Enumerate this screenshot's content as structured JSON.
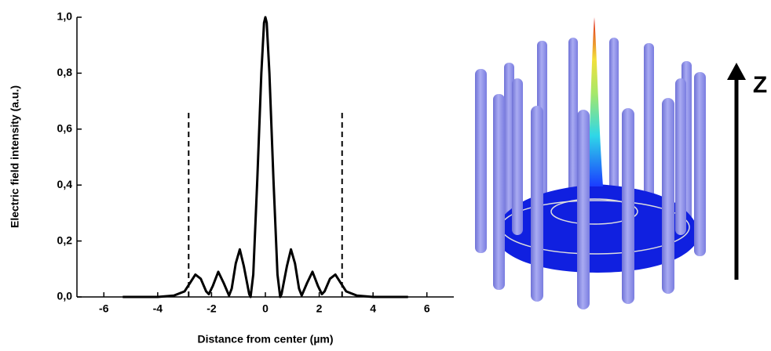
{
  "chart_data": {
    "type": "line",
    "x_label": "Distance from center (µm)",
    "y_label": "Electric field intensity (a.u.)",
    "x": [
      -5.3,
      -4.0,
      -3.4,
      -3.0,
      -2.8,
      -2.6,
      -2.4,
      -2.2,
      -2.1,
      -1.95,
      -1.75,
      -1.55,
      -1.35,
      -1.25,
      -1.1,
      -0.95,
      -0.8,
      -0.6,
      -0.55,
      -0.45,
      -0.3,
      -0.15,
      -0.05,
      0,
      0.05,
      0.15,
      0.3,
      0.45,
      0.55,
      0.6,
      0.8,
      0.95,
      1.1,
      1.25,
      1.35,
      1.55,
      1.75,
      1.95,
      2.1,
      2.2,
      2.4,
      2.6,
      2.8,
      3.0,
      3.4,
      4.0,
      5.3
    ],
    "values": [
      0,
      0,
      0.005,
      0.02,
      0.05,
      0.08,
      0.065,
      0.02,
      0.01,
      0.04,
      0.09,
      0.05,
      0.005,
      0.03,
      0.12,
      0.17,
      0.11,
      0.01,
      0,
      0.08,
      0.42,
      0.8,
      0.98,
      1.0,
      0.98,
      0.8,
      0.42,
      0.08,
      0,
      0.01,
      0.11,
      0.17,
      0.12,
      0.03,
      0.005,
      0.05,
      0.09,
      0.04,
      0.01,
      0.02,
      0.065,
      0.08,
      0.05,
      0.02,
      0.005,
      0,
      0
    ],
    "color": "#000000",
    "reference_lines": {
      "x": [
        -2.85,
        2.85
      ],
      "y_top": 0.67
    },
    "xlim": [
      -7,
      7
    ],
    "xticks": [
      -6,
      -4,
      -2,
      0,
      2,
      4,
      6
    ],
    "ylim": [
      0,
      1.0
    ],
    "yticks": [
      {
        "value": 0,
        "label": "0,0"
      },
      {
        "value": 0.2,
        "label": "0,2"
      },
      {
        "value": 0.4,
        "label": "0,4"
      },
      {
        "value": 0.6,
        "label": "0,6"
      },
      {
        "value": 0.8,
        "label": "0,8"
      },
      {
        "value": 1.0,
        "label": "1,0"
      }
    ]
  },
  "illustration": {
    "axis_label": "Z"
  }
}
